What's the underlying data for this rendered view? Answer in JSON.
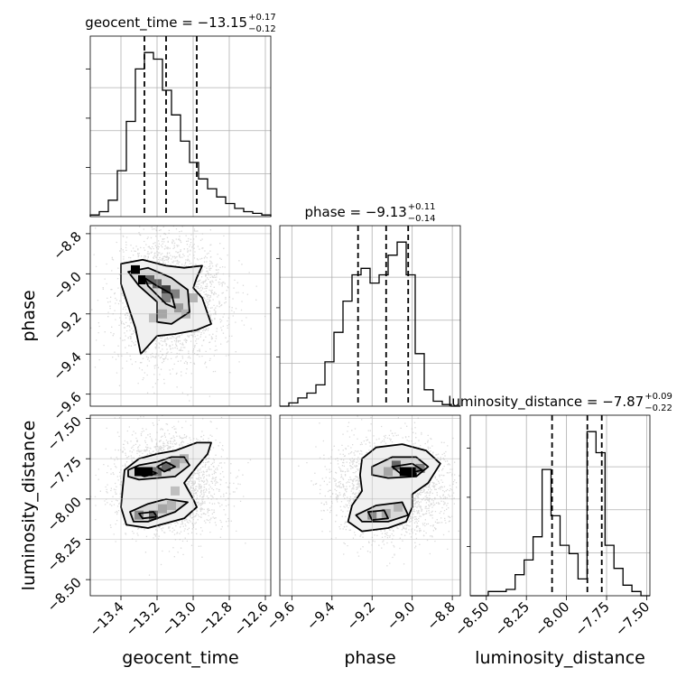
{
  "chart_data": {
    "type": "corner",
    "parameters": [
      "geocent_time",
      "phase",
      "luminosity_distance"
    ],
    "ranges": {
      "geocent_time": [
        -13.57,
        -12.57
      ],
      "phase": [
        -9.66,
        -8.76
      ],
      "luminosity_distance": [
        -8.6,
        -7.48
      ]
    },
    "ticks": {
      "geocent_time": [
        -13.4,
        -13.2,
        -13.0,
        -12.8,
        -12.6
      ],
      "phase": [
        -9.6,
        -9.4,
        -9.2,
        -9.0,
        -8.8
      ],
      "luminosity_distance": [
        -8.5,
        -8.25,
        -8.0,
        -7.75,
        -7.5
      ]
    },
    "tick_labels": {
      "geocent_time": [
        "−13.4",
        "−13.2",
        "−13.0",
        "−12.8",
        "−12.6"
      ],
      "phase": [
        "−9.6",
        "−9.4",
        "−9.2",
        "−9.0",
        "−8.8"
      ],
      "luminosity_distance": [
        "−8.50",
        "−8.25",
        "−8.00",
        "−7.75",
        "−7.50"
      ]
    },
    "axis_labels": {
      "geocent_time": "geocent_time",
      "phase": "phase",
      "luminosity_distance": "luminosity_distance"
    },
    "titles": [
      {
        "param": "geocent_time",
        "main": "geocent_time = −13.15",
        "sup": "+0.17",
        "sub": "−0.12"
      },
      {
        "param": "phase",
        "main": "phase = −9.13",
        "sup": "+0.11",
        "sub": "−0.14"
      },
      {
        "param": "luminosity_distance",
        "main": "luminosity_distance = −7.87",
        "sup": "+0.09",
        "sub": "−0.22"
      }
    ],
    "quantiles": {
      "geocent_time": [
        -13.27,
        -13.15,
        -12.98
      ],
      "phase": [
        -9.27,
        -9.13,
        -9.02
      ],
      "luminosity_distance": [
        -8.09,
        -7.87,
        -7.78
      ]
    },
    "histograms": {
      "geocent_time": {
        "edges": [
          -13.57,
          -13.52,
          -13.47,
          -13.42,
          -13.37,
          -13.32,
          -13.27,
          -13.22,
          -13.17,
          -13.12,
          -13.07,
          -13.02,
          -12.97,
          -12.92,
          -12.87,
          -12.82,
          -12.77,
          -12.72,
          -12.67,
          -12.62,
          -12.57
        ],
        "counts": [
          0.01,
          0.03,
          0.1,
          0.28,
          0.58,
          0.9,
          1.0,
          0.96,
          0.77,
          0.62,
          0.46,
          0.33,
          0.23,
          0.17,
          0.12,
          0.08,
          0.05,
          0.03,
          0.02,
          0.01
        ]
      },
      "phase": {
        "edges": [
          -9.66,
          -9.615,
          -9.57,
          -9.525,
          -9.48,
          -9.435,
          -9.39,
          -9.345,
          -9.3,
          -9.255,
          -9.21,
          -9.165,
          -9.12,
          -9.075,
          -9.03,
          -8.985,
          -8.94,
          -8.895,
          -8.85,
          -8.805,
          -8.76
        ],
        "counts": [
          0.0,
          0.02,
          0.05,
          0.08,
          0.13,
          0.27,
          0.45,
          0.64,
          0.8,
          0.84,
          0.75,
          0.8,
          0.92,
          1.0,
          0.8,
          0.32,
          0.1,
          0.03,
          0.01,
          0.0
        ]
      },
      "luminosity_distance": {
        "edges": [
          -8.6,
          -8.544,
          -8.488,
          -8.432,
          -8.376,
          -8.32,
          -8.264,
          -8.208,
          -8.152,
          -8.096,
          -8.04,
          -7.984,
          -7.928,
          -7.872,
          -7.816,
          -7.76,
          -7.704,
          -7.648,
          -7.592,
          -7.536,
          -7.48
        ],
        "counts": [
          0.0,
          0.0,
          0.02,
          0.02,
          0.03,
          0.1,
          0.17,
          0.28,
          0.6,
          0.38,
          0.24,
          0.2,
          0.08,
          0.78,
          0.68,
          0.24,
          0.13,
          0.05,
          0.02,
          0.0
        ]
      }
    },
    "joint": [
      {
        "x": "geocent_time",
        "y": "phase",
        "cells": [
          [
            -13.32,
            -8.98,
            1
          ],
          [
            -13.28,
            -9.03,
            1
          ],
          [
            -13.24,
            -9.03,
            0.6
          ],
          [
            -13.2,
            -9.05,
            0.6
          ],
          [
            -13.15,
            -9.08,
            0.75
          ],
          [
            -13.15,
            -9.12,
            0.5
          ],
          [
            -13.1,
            -9.1,
            0.5
          ],
          [
            -13.08,
            -9.17,
            0.4
          ],
          [
            -13.17,
            -9.2,
            0.35
          ],
          [
            -13.22,
            -9.22,
            0.25
          ],
          [
            -13.04,
            -9.2,
            0.3
          ],
          [
            -13.0,
            -9.12,
            0.3
          ]
        ],
        "contours": [
          [
            [
              -13.27,
              -9.02
            ],
            [
              -13.2,
              -9.06
            ],
            [
              -13.12,
              -9.1
            ],
            [
              -13.1,
              -9.17
            ],
            [
              -13.15,
              -9.15
            ],
            [
              -13.25,
              -9.06
            ]
          ],
          [
            [
              -13.36,
              -8.99
            ],
            [
              -13.25,
              -8.97
            ],
            [
              -13.12,
              -9.02
            ],
            [
              -13.03,
              -9.08
            ],
            [
              -13.02,
              -9.19
            ],
            [
              -13.12,
              -9.25
            ],
            [
              -13.2,
              -9.24
            ],
            [
              -13.2,
              -9.14
            ],
            [
              -13.3,
              -9.06
            ]
          ],
          [
            [
              -13.4,
              -8.95
            ],
            [
              -13.28,
              -8.93
            ],
            [
              -13.15,
              -8.96
            ],
            [
              -13.05,
              -8.97
            ],
            [
              -12.95,
              -8.96
            ],
            [
              -12.98,
              -9.02
            ],
            [
              -13.0,
              -9.07
            ],
            [
              -12.95,
              -9.12
            ],
            [
              -12.9,
              -9.25
            ],
            [
              -12.98,
              -9.28
            ],
            [
              -13.1,
              -9.3
            ],
            [
              -13.2,
              -9.31
            ],
            [
              -13.29,
              -9.4
            ],
            [
              -13.32,
              -9.27
            ],
            [
              -13.4,
              -9.05
            ]
          ]
        ]
      },
      {
        "x": "geocent_time",
        "y": "luminosity_distance",
        "cells": [
          [
            -13.3,
            -7.83,
            1
          ],
          [
            -13.25,
            -7.83,
            1
          ],
          [
            -13.2,
            -7.83,
            0.55
          ],
          [
            -13.15,
            -7.8,
            0.6
          ],
          [
            -13.1,
            -7.78,
            0.4
          ],
          [
            -13.05,
            -7.75,
            0.3
          ],
          [
            -13.3,
            -8.1,
            0.45
          ],
          [
            -13.22,
            -8.1,
            0.6
          ],
          [
            -13.17,
            -8.06,
            0.35
          ],
          [
            -13.12,
            -8.04,
            0.3
          ],
          [
            -13.1,
            -7.95,
            0.25
          ]
        ],
        "contours": [
          [
            [
              -13.32,
              -7.84
            ],
            [
              -13.25,
              -7.82
            ],
            [
              -13.2,
              -7.84
            ],
            [
              -13.27,
              -7.86
            ]
          ],
          [
            [
              -13.2,
              -7.8
            ],
            [
              -13.15,
              -7.77
            ],
            [
              -13.1,
              -7.8
            ],
            [
              -13.16,
              -7.83
            ]
          ],
          [
            [
              -13.3,
              -8.09
            ],
            [
              -13.22,
              -8.08
            ],
            [
              -13.2,
              -8.11
            ],
            [
              -13.28,
              -8.12
            ]
          ],
          [
            [
              -13.36,
              -7.82
            ],
            [
              -13.3,
              -7.79
            ],
            [
              -13.2,
              -7.77
            ],
            [
              -13.12,
              -7.74
            ],
            [
              -13.05,
              -7.74
            ],
            [
              -13.02,
              -7.79
            ],
            [
              -13.1,
              -7.86
            ],
            [
              -13.2,
              -7.87
            ],
            [
              -13.3,
              -7.88
            ],
            [
              -13.36,
              -7.86
            ]
          ],
          [
            [
              -13.35,
              -8.08
            ],
            [
              -13.25,
              -8.03
            ],
            [
              -13.15,
              -8.0
            ],
            [
              -13.03,
              -8.02
            ],
            [
              -13.1,
              -8.08
            ],
            [
              -13.25,
              -8.14
            ],
            [
              -13.33,
              -8.14
            ]
          ],
          [
            [
              -13.38,
              -7.82
            ],
            [
              -13.3,
              -7.75
            ],
            [
              -13.2,
              -7.72
            ],
            [
              -13.1,
              -7.7
            ],
            [
              -12.98,
              -7.65
            ],
            [
              -12.9,
              -7.65
            ],
            [
              -12.92,
              -7.72
            ],
            [
              -12.98,
              -7.8
            ],
            [
              -13.05,
              -7.9
            ],
            [
              -13.0,
              -8.0
            ],
            [
              -12.98,
              -8.05
            ],
            [
              -13.05,
              -8.12
            ],
            [
              -13.15,
              -8.15
            ],
            [
              -13.25,
              -8.18
            ],
            [
              -13.37,
              -8.16
            ],
            [
              -13.4,
              -8.05
            ],
            [
              -13.39,
              -7.93
            ]
          ]
        ]
      },
      {
        "x": "phase",
        "y": "luminosity_distance",
        "cells": [
          [
            -9.08,
            -7.79,
            0.6
          ],
          [
            -9.04,
            -7.83,
            1
          ],
          [
            -9.0,
            -7.83,
            1
          ],
          [
            -8.96,
            -7.81,
            0.5
          ],
          [
            -9.12,
            -7.83,
            0.35
          ],
          [
            -9.2,
            -8.1,
            0.45
          ],
          [
            -9.13,
            -8.09,
            0.35
          ],
          [
            -9.07,
            -8.05,
            0.3
          ]
        ],
        "contours": [
          [
            [
              -9.1,
              -7.8
            ],
            [
              -9.0,
              -7.78
            ],
            [
              -8.95,
              -7.82
            ],
            [
              -9.05,
              -7.85
            ]
          ],
          [
            [
              -9.22,
              -8.08
            ],
            [
              -9.14,
              -8.07
            ],
            [
              -9.12,
              -8.12
            ],
            [
              -9.2,
              -8.13
            ]
          ],
          [
            [
              -9.2,
              -7.8
            ],
            [
              -9.1,
              -7.74
            ],
            [
              -8.98,
              -7.74
            ],
            [
              -8.92,
              -7.8
            ],
            [
              -8.98,
              -7.86
            ],
            [
              -9.12,
              -7.87
            ],
            [
              -9.2,
              -7.85
            ]
          ],
          [
            [
              -9.28,
              -8.1
            ],
            [
              -9.18,
              -8.04
            ],
            [
              -9.05,
              -8.02
            ],
            [
              -9.02,
              -8.1
            ],
            [
              -9.12,
              -8.14
            ],
            [
              -9.25,
              -8.14
            ]
          ],
          [
            [
              -9.25,
              -7.75
            ],
            [
              -9.18,
              -7.68
            ],
            [
              -9.05,
              -7.66
            ],
            [
              -8.93,
              -7.7
            ],
            [
              -8.86,
              -7.78
            ],
            [
              -8.92,
              -7.9
            ],
            [
              -9.0,
              -7.97
            ],
            [
              -9.0,
              -8.05
            ],
            [
              -9.03,
              -8.14
            ],
            [
              -9.12,
              -8.18
            ],
            [
              -9.25,
              -8.2
            ],
            [
              -9.32,
              -8.14
            ],
            [
              -9.3,
              -8.04
            ],
            [
              -9.25,
              -7.95
            ],
            [
              -9.26,
              -7.85
            ]
          ]
        ]
      }
    ],
    "grid": true
  }
}
